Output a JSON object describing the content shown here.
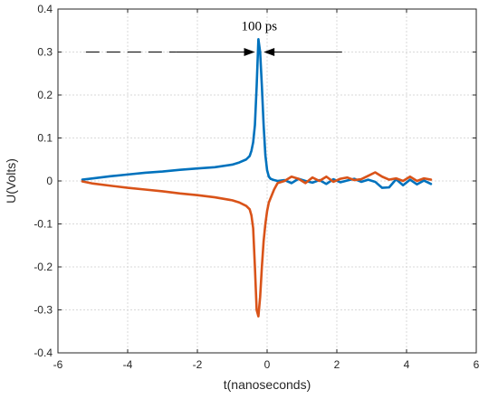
{
  "chart_data": {
    "type": "line",
    "title": "",
    "xlabel": "t(nanoseconds)",
    "ylabel": "U(Volts)",
    "xlim": [
      -6,
      6
    ],
    "ylim": [
      -0.4,
      0.4
    ],
    "xticks": [
      -6,
      -4,
      -2,
      0,
      2,
      4,
      6
    ],
    "yticks": [
      -0.4,
      -0.3,
      -0.2,
      -0.1,
      0,
      0.1,
      0.2,
      0.3,
      0.4
    ],
    "grid": true,
    "colors": {
      "series1": "#0072BD",
      "series2": "#D95319"
    },
    "annotation": {
      "text": "100 ps",
      "y": 0.3,
      "dash_from_x": -5.2,
      "left_arrow_from_x": -2.6,
      "left_arrow_to_x": -0.35,
      "right_arrow_from_x": 2.15,
      "right_arrow_to_x": -0.1
    },
    "series": [
      {
        "x": [
          -5.3,
          -5.0,
          -4.5,
          -4.0,
          -3.5,
          -3.0,
          -2.5,
          -2.0,
          -1.5,
          -1.0,
          -0.8,
          -0.6,
          -0.5,
          -0.45,
          -0.4,
          -0.35,
          -0.3,
          -0.25,
          -0.2,
          -0.15,
          -0.1,
          -0.05,
          0.0,
          0.05,
          0.1,
          0.2,
          0.3,
          0.5,
          0.7,
          0.9,
          1.1,
          1.3,
          1.5,
          1.7,
          1.9,
          2.1,
          2.3,
          2.5,
          2.7,
          2.9,
          3.1,
          3.3,
          3.5,
          3.7,
          3.9,
          4.1,
          4.3,
          4.5,
          4.7
        ],
        "values": [
          0.003,
          0.006,
          0.011,
          0.015,
          0.019,
          0.022,
          0.026,
          0.029,
          0.032,
          0.038,
          0.043,
          0.05,
          0.058,
          0.07,
          0.09,
          0.13,
          0.22,
          0.33,
          0.3,
          0.22,
          0.13,
          0.06,
          0.025,
          0.01,
          0.005,
          0.002,
          0.0,
          0.002,
          -0.005,
          0.005,
          0.0,
          -0.004,
          0.002,
          -0.007,
          0.004,
          -0.003,
          0.001,
          0.005,
          -0.002,
          0.003,
          -0.002,
          -0.016,
          -0.015,
          0.004,
          -0.01,
          0.003,
          -0.008,
          0.001,
          -0.007
        ]
      },
      {
        "x": [
          -5.3,
          -5.0,
          -4.5,
          -4.0,
          -3.5,
          -3.0,
          -2.5,
          -2.0,
          -1.5,
          -1.0,
          -0.8,
          -0.6,
          -0.5,
          -0.45,
          -0.4,
          -0.35,
          -0.3,
          -0.25,
          -0.2,
          -0.15,
          -0.1,
          -0.05,
          0.0,
          0.05,
          0.1,
          0.2,
          0.3,
          0.5,
          0.7,
          0.9,
          1.1,
          1.3,
          1.5,
          1.7,
          1.9,
          2.1,
          2.3,
          2.5,
          2.7,
          2.9,
          3.1,
          3.3,
          3.5,
          3.7,
          3.9,
          4.1,
          4.3,
          4.5,
          4.7
        ],
        "values": [
          -0.001,
          -0.006,
          -0.011,
          -0.016,
          -0.02,
          -0.024,
          -0.029,
          -0.033,
          -0.038,
          -0.045,
          -0.05,
          -0.058,
          -0.066,
          -0.08,
          -0.11,
          -0.2,
          -0.3,
          -0.315,
          -0.27,
          -0.2,
          -0.14,
          -0.1,
          -0.07,
          -0.05,
          -0.04,
          -0.02,
          -0.005,
          0.0,
          0.01,
          0.005,
          -0.005,
          0.008,
          0.0,
          0.01,
          -0.002,
          0.005,
          0.008,
          0.002,
          0.004,
          0.012,
          0.02,
          0.01,
          0.003,
          0.006,
          0.0,
          0.01,
          0.0,
          0.006,
          0.003
        ]
      }
    ]
  }
}
